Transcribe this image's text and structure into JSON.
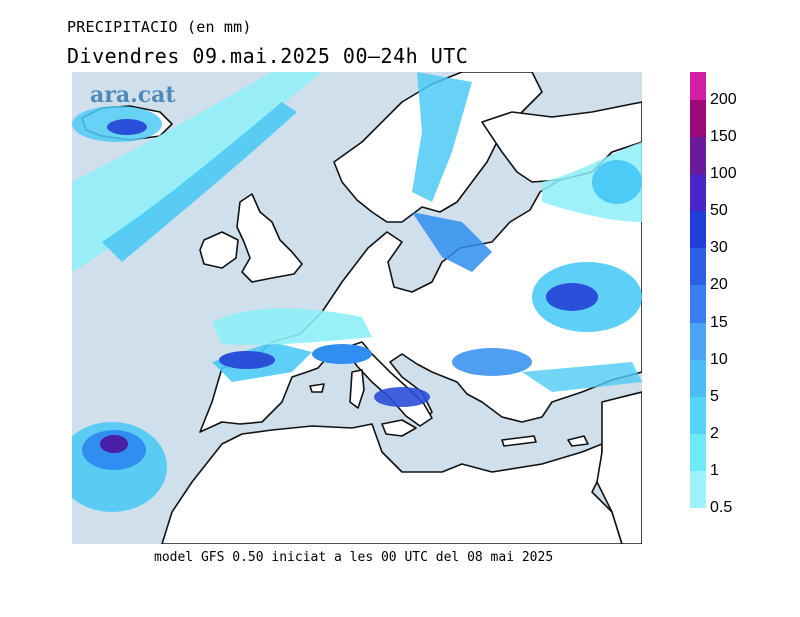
{
  "header": {
    "title": "PRECIPITACIO (en mm)",
    "subtitle": "Divendres  09.mai.2025 00–24h UTC"
  },
  "watermark": "ara.cat",
  "footer": "model GFS 0.50 iniciat a les 00 UTC del 08 mai 2025",
  "legend": {
    "labels": [
      "200",
      "150",
      "100",
      "50",
      "30",
      "20",
      "15",
      "10",
      "5",
      "2",
      "1",
      "0.5"
    ],
    "colors": [
      "#d21fa6",
      "#9c0a7a",
      "#6a1b9a",
      "#4a26c8",
      "#1f3fd8",
      "#2a5fe6",
      "#3a7df0",
      "#4aa5f4",
      "#4bbcf4",
      "#55d5f5",
      "#6fe8f8",
      "#9ef2fb"
    ]
  },
  "colors": {
    "sea": "#cfe0ec",
    "land": "#ffffff",
    "coast": "#111111",
    "rain_light": "#8eeef8",
    "rain_mid": "#4dcaf5",
    "rain_heavy": "#2f8ef0",
    "rain_very_heavy": "#2a4fd8",
    "rain_extreme": "#4a1fa8"
  }
}
